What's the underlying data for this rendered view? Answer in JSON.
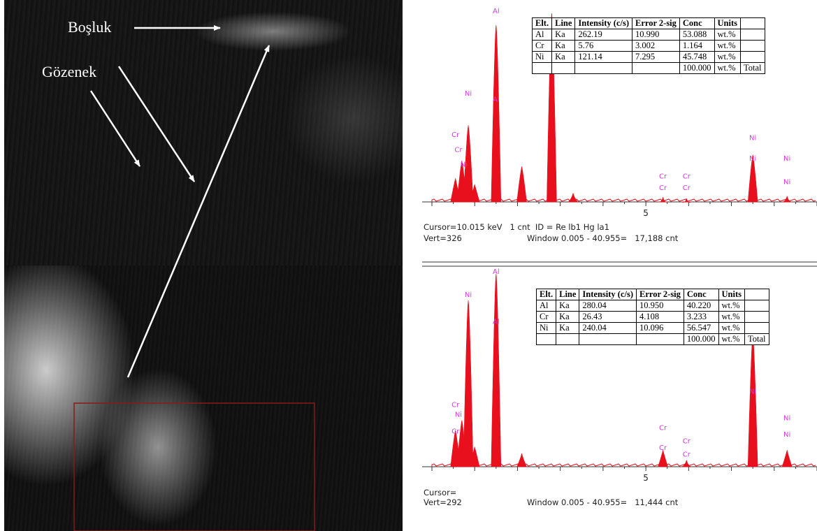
{
  "sem_labels": {
    "void": "Boşluk",
    "pore": "Gözenek"
  },
  "colors": {
    "peak": "#e8101c",
    "peak_label": "#d23ad8",
    "arrow": "#ffffff",
    "roi_box": "#8a1a1a"
  },
  "spectra": [
    {
      "axis_tick": "5",
      "readout": {
        "cursor": "Cursor=10.015 keV   1 cnt  ID = Re lb1 Hg la1",
        "vert": "Vert=326",
        "window": "Window 0.005 - 40.955=   17,188 cnt"
      },
      "chart_data": {
        "type": "bar",
        "xlabel": "",
        "ylabel": "",
        "x_tick_labels": [
          "5"
        ],
        "peaks": [
          {
            "x": 0.55,
            "y": 40
          },
          {
            "x": 0.7,
            "y": 70
          },
          {
            "x": 0.85,
            "y": 130
          },
          {
            "x": 1.0,
            "y": 30
          },
          {
            "x": 1.5,
            "y": 300
          },
          {
            "x": 2.1,
            "y": 60
          },
          {
            "x": 2.8,
            "y": 320
          },
          {
            "x": 3.3,
            "y": 15
          },
          {
            "x": 5.4,
            "y": 8
          },
          {
            "x": 5.95,
            "y": 6
          },
          {
            "x": 7.5,
            "y": 80
          },
          {
            "x": 8.3,
            "y": 10
          }
        ],
        "peak_labels": [
          {
            "text": "Al",
            "x": 1.5,
            "y": 320
          },
          {
            "text": "Al",
            "x": 1.5,
            "y": 170
          },
          {
            "text": "Ni",
            "x": 0.85,
            "y": 180
          },
          {
            "text": "Cr",
            "x": 0.55,
            "y": 110
          },
          {
            "text": "Cr",
            "x": 0.62,
            "y": 85
          },
          {
            "text": "Ni",
            "x": 0.75,
            "y": 60
          },
          {
            "text": "Cr",
            "x": 5.4,
            "y": 40
          },
          {
            "text": "Cr",
            "x": 5.95,
            "y": 40
          },
          {
            "text": "Cr",
            "x": 5.4,
            "y": 20
          },
          {
            "text": "Cr",
            "x": 5.95,
            "y": 20
          },
          {
            "text": "Ni",
            "x": 7.5,
            "y": 105
          },
          {
            "text": "Ni",
            "x": 7.5,
            "y": 70
          },
          {
            "text": "Ni",
            "x": 8.3,
            "y": 70
          },
          {
            "text": "Ni",
            "x": 8.3,
            "y": 30
          }
        ],
        "xlim": [
          0,
          9.0
        ],
        "ylim": [
          0,
          326
        ]
      },
      "table": {
        "headers": [
          "Elt.",
          "Line",
          "Intensity (c/s)",
          "Error 2-sig",
          "Conc",
          "Units",
          ""
        ],
        "rows": [
          [
            "Al",
            "Ka",
            "262.19",
            "10.990",
            "53.088",
            "wt.%",
            ""
          ],
          [
            "Cr",
            "Ka",
            "5.76",
            "3.002",
            "1.164",
            "wt.%",
            ""
          ],
          [
            "Ni",
            "Ka",
            "121.14",
            "7.295",
            "45.748",
            "wt.%",
            ""
          ],
          [
            "",
            "",
            "",
            "",
            "100.000",
            "wt.%",
            "Total"
          ]
        ]
      }
    },
    {
      "axis_tick": "5",
      "readout": {
        "cursor": "Cursor=",
        "vert": "Vert=292",
        "window": "Window 0.005 - 40.955=   11,444 cnt"
      },
      "chart_data": {
        "type": "bar",
        "xlabel": "",
        "ylabel": "",
        "x_tick_labels": [
          "5"
        ],
        "peaks": [
          {
            "x": 0.55,
            "y": 55
          },
          {
            "x": 0.7,
            "y": 70
          },
          {
            "x": 0.85,
            "y": 250
          },
          {
            "x": 1.0,
            "y": 30
          },
          {
            "x": 1.5,
            "y": 290
          },
          {
            "x": 2.1,
            "y": 20
          },
          {
            "x": 5.4,
            "y": 25
          },
          {
            "x": 5.95,
            "y": 10
          },
          {
            "x": 7.5,
            "y": 200
          },
          {
            "x": 8.3,
            "y": 25
          }
        ],
        "peak_labels": [
          {
            "text": "Al",
            "x": 1.5,
            "y": 290
          },
          {
            "text": "Al",
            "x": 1.5,
            "y": 215
          },
          {
            "text": "Ni",
            "x": 0.85,
            "y": 255
          },
          {
            "text": "Cr",
            "x": 0.55,
            "y": 90
          },
          {
            "text": "Ni",
            "x": 0.62,
            "y": 75
          },
          {
            "text": "Cr",
            "x": 0.55,
            "y": 50
          },
          {
            "text": "Cr",
            "x": 5.4,
            "y": 55
          },
          {
            "text": "Cr",
            "x": 5.4,
            "y": 25
          },
          {
            "text": "Cr",
            "x": 5.95,
            "y": 35
          },
          {
            "text": "Cr",
            "x": 5.95,
            "y": 15
          },
          {
            "text": "Ni",
            "x": 7.5,
            "y": 110
          },
          {
            "text": "Ni",
            "x": 8.3,
            "y": 70
          },
          {
            "text": "Ni",
            "x": 8.3,
            "y": 45
          }
        ],
        "xlim": [
          0,
          9.0
        ],
        "ylim": [
          0,
          292
        ]
      },
      "table": {
        "headers": [
          "Elt.",
          "Line",
          "Intensity (c/s)",
          "Error 2-sig",
          "Conc",
          "Units",
          ""
        ],
        "rows": [
          [
            "Al",
            "Ka",
            "280.04",
            "10.950",
            "40.220",
            "wt.%",
            ""
          ],
          [
            "Cr",
            "Ka",
            "26.43",
            "4.108",
            "3.233",
            "wt.%",
            ""
          ],
          [
            "Ni",
            "Ka",
            "240.04",
            "10.096",
            "56.547",
            "wt.%",
            ""
          ],
          [
            "",
            "",
            "",
            "",
            "100.000",
            "wt.%",
            "Total"
          ]
        ]
      }
    }
  ]
}
